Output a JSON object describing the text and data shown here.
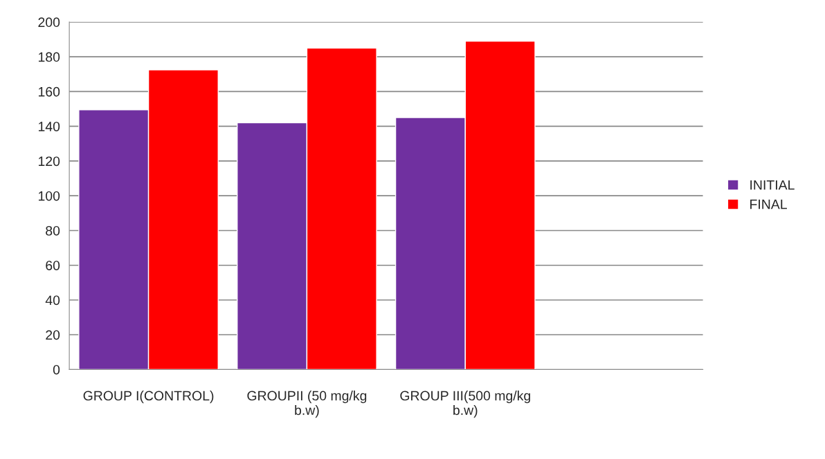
{
  "chart_data": {
    "type": "bar",
    "categories": [
      "GROUP I(CONTROL)",
      "GROUPII (50 mg/kg b.w)",
      "GROUP III(500 mg/kg b.w)",
      null
    ],
    "series": [
      {
        "name": "INITIAL",
        "color": "#7030a0",
        "values": [
          149.5,
          142,
          145,
          null
        ]
      },
      {
        "name": "FINAL",
        "color": "#ff0000",
        "values": [
          172.5,
          185,
          189,
          null
        ]
      }
    ],
    "ylim": [
      0,
      200
    ],
    "yticks": [
      0,
      20,
      40,
      60,
      80,
      100,
      120,
      140,
      160,
      180,
      200
    ],
    "grid": "y",
    "legend": "right"
  }
}
